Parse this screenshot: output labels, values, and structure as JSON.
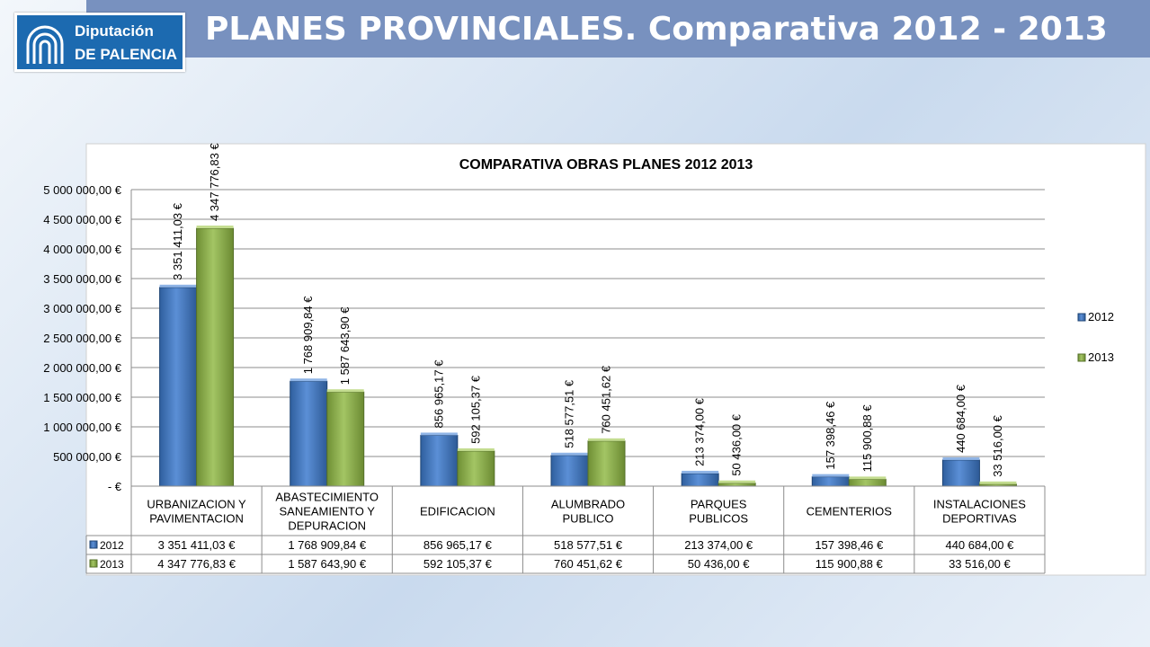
{
  "header": {
    "title": "PLANES PROVINCIALES. Comparativa 2012 - 2013",
    "logo_line1": "Diputación",
    "logo_line2": "DE PALENCIA"
  },
  "colors": {
    "title_bar": "#7891bf",
    "logo_blue": "#1c6ab0",
    "series_2012": "#4a7fc7",
    "series_2013": "#8fb04f"
  },
  "chart_data": {
    "type": "bar",
    "title": "COMPARATIVA OBRAS PLANES 2012 2013",
    "categories": [
      [
        "URBANIZACION Y",
        "PAVIMENTACION"
      ],
      [
        "ABASTECIMIENTO",
        "SANEAMIENTO Y",
        "DEPURACION"
      ],
      [
        "EDIFICACION"
      ],
      [
        "ALUMBRADO",
        "PUBLICO"
      ],
      [
        "PARQUES",
        "PUBLICOS"
      ],
      [
        "CEMENTERIOS"
      ],
      [
        "INSTALACIONES",
        "DEPORTIVAS"
      ]
    ],
    "series": [
      {
        "name": "2012",
        "values": [
          3351411.03,
          1768909.84,
          856965.17,
          518577.51,
          213374.0,
          157398.46,
          440684.0
        ],
        "labels": [
          "3 351 411,03 €",
          "1 768 909,84 €",
          "856 965,17 €",
          "518 577,51 €",
          "213 374,00 €",
          "157 398,46 €",
          "440 684,00 €"
        ]
      },
      {
        "name": "2013",
        "values": [
          4347776.83,
          1587643.9,
          592105.37,
          760451.62,
          50436.0,
          115900.88,
          33516.0
        ],
        "labels": [
          "4 347 776,83 €",
          "1 587 643,90 €",
          "592 105,37 €",
          "760 451,62 €",
          "50 436,00 €",
          "115 900,88 €",
          "33 516,00 €"
        ]
      }
    ],
    "y_ticks": [
      {
        "value": 0,
        "label": "-   €"
      },
      {
        "value": 500000,
        "label": "500 000,00 €"
      },
      {
        "value": 1000000,
        "label": "1 000 000,00 €"
      },
      {
        "value": 1500000,
        "label": "1 500 000,00 €"
      },
      {
        "value": 2000000,
        "label": "2 000 000,00 €"
      },
      {
        "value": 2500000,
        "label": "2 500 000,00 €"
      },
      {
        "value": 3000000,
        "label": "3 000 000,00 €"
      },
      {
        "value": 3500000,
        "label": "3 500 000,00 €"
      },
      {
        "value": 4000000,
        "label": "4 000 000,00 €"
      },
      {
        "value": 4500000,
        "label": "4 500 000,00 €"
      },
      {
        "value": 5000000,
        "label": "5 000 000,00 €"
      }
    ],
    "ylim": [
      0,
      5000000
    ],
    "grid": true,
    "legend": "right",
    "data_table": true
  }
}
